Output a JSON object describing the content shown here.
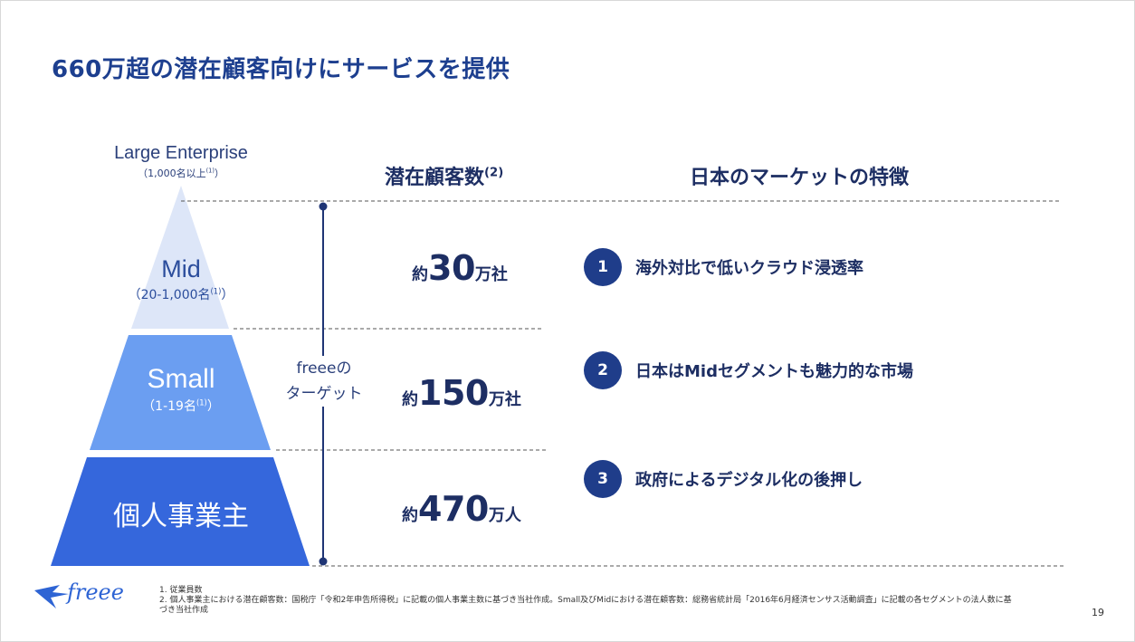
{
  "title": "660万超の潜在顧客向けにサービスを提供",
  "pyramid": {
    "large": {
      "label": "Large Enterprise",
      "sub": "（1,000名以上",
      "note": "(1)",
      "close": "）"
    },
    "mid": {
      "label": "Mid",
      "sub": "（20-1,000名",
      "note": "(1)",
      "close": "）"
    },
    "small": {
      "label": "Small",
      "sub": "（1-19名",
      "note": "(1)",
      "close": "）"
    },
    "kojin": {
      "label": "個人事業主"
    },
    "colors": {
      "mid": "#dde6f8",
      "small": "#6b9ef1",
      "kojin": "#3567dc"
    }
  },
  "target": {
    "line1": "freeeの",
    "line2": "ターゲット"
  },
  "headers": {
    "customers": "潜在顧客数",
    "customers_note": "(2)",
    "market": "日本のマーケットの特徴"
  },
  "counts": [
    {
      "prefix": "約",
      "number": "30",
      "suffix": "万社"
    },
    {
      "prefix": "約",
      "number": "150",
      "suffix": "万社"
    },
    {
      "prefix": "約",
      "number": "470",
      "suffix": "万人"
    }
  ],
  "features": [
    {
      "num": "1",
      "text": "海外対比で低いクラウド浸透率"
    },
    {
      "num": "2",
      "text": "日本はMidセグメントも魅力的な市場"
    },
    {
      "num": "3",
      "text": "政府によるデジタル化の後押し"
    }
  ],
  "logo": {
    "text": "freee",
    "icon": "bird-icon"
  },
  "footnotes": [
    "1.  従業員数",
    "2.  個人事業主における潜在顧客数：国税庁「令和2年申告所得税」に記載の個人事業主数に基づき当社作成。Small及びMidにおける潜在顧客数：総務省統計局「2016年6月経済センサス活動調査」に記載の各セグメントの法人数に基",
    "     づき当社作成"
  ],
  "page_number": "19",
  "colors": {
    "title": "#1d3f8f",
    "badge": "#1f3d8a",
    "text_dark": "#1d2e63"
  }
}
